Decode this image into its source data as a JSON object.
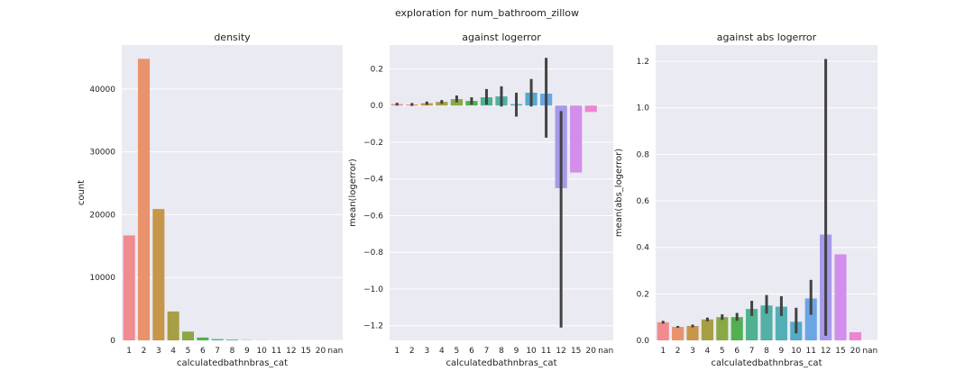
{
  "figure": {
    "title": "exploration for num_bathroom_zillow"
  },
  "chart_data": [
    {
      "type": "bar",
      "title": "density",
      "xlabel": "calculatedbathnbras_cat",
      "ylabel": "count",
      "categories": [
        "1",
        "2",
        "3",
        "4",
        "5",
        "6",
        "7",
        "8",
        "9",
        "10",
        "11",
        "12",
        "15",
        "20",
        "nan"
      ],
      "values": [
        16700,
        44800,
        20900,
        4600,
        1400,
        450,
        200,
        130,
        40,
        20,
        10,
        4,
        2,
        1,
        0
      ],
      "ylim": [
        0,
        47000
      ],
      "yticks": [
        0,
        10000,
        20000,
        30000,
        40000
      ],
      "grid": true
    },
    {
      "type": "bar",
      "title": "against logerror",
      "xlabel": "calculatedbathnbras_cat",
      "ylabel": "mean(logerror)",
      "categories": [
        "1",
        "2",
        "3",
        "4",
        "5",
        "6",
        "7",
        "8",
        "9",
        "10",
        "11",
        "12",
        "15",
        "20",
        "nan"
      ],
      "values": [
        0.008,
        0.006,
        0.013,
        0.02,
        0.035,
        0.025,
        0.045,
        0.05,
        0.008,
        0.07,
        0.065,
        -0.45,
        -0.365,
        -0.035,
        0
      ],
      "ci_low": [
        0.0,
        -0.002,
        0.004,
        0.01,
        0.018,
        0.005,
        0.005,
        -0.005,
        -0.06,
        -0.005,
        -0.175,
        -1.21,
        null,
        null,
        null
      ],
      "ci_high": [
        0.015,
        0.014,
        0.022,
        0.03,
        0.055,
        0.045,
        0.09,
        0.105,
        0.07,
        0.145,
        0.26,
        -0.03,
        null,
        null,
        null
      ],
      "ylim": [
        -1.28,
        0.33
      ],
      "yticks": [
        -1.2,
        -1.0,
        -0.8,
        -0.6,
        -0.4,
        -0.2,
        0.0,
        0.2
      ],
      "ytick_labels": [
        "−1.2",
        "−1.0",
        "−0.8",
        "−0.6",
        "−0.4",
        "−0.2",
        "0.0",
        "0.2"
      ],
      "grid": true
    },
    {
      "type": "bar",
      "title": "against abs logerror",
      "xlabel": "calculatedbathnbras_cat",
      "ylabel": "mean(abs_logerror)",
      "categories": [
        "1",
        "2",
        "3",
        "4",
        "5",
        "6",
        "7",
        "8",
        "9",
        "10",
        "11",
        "12",
        "15",
        "20",
        "nan"
      ],
      "values": [
        0.078,
        0.058,
        0.062,
        0.09,
        0.1,
        0.1,
        0.135,
        0.15,
        0.145,
        0.08,
        0.18,
        0.455,
        0.37,
        0.035,
        0
      ],
      "ci_low": [
        0.072,
        0.054,
        0.056,
        0.082,
        0.088,
        0.084,
        0.105,
        0.115,
        0.105,
        0.03,
        0.11,
        0.02,
        null,
        null,
        null
      ],
      "ci_high": [
        0.084,
        0.062,
        0.068,
        0.098,
        0.112,
        0.118,
        0.17,
        0.195,
        0.19,
        0.14,
        0.26,
        1.21,
        null,
        null,
        null
      ],
      "ylim": [
        0,
        1.27
      ],
      "yticks": [
        0,
        0.2,
        0.4,
        0.6,
        0.8,
        1.0,
        1.2
      ],
      "ytick_labels": [
        "0.0",
        "0.2",
        "0.4",
        "0.6",
        "0.8",
        "1.0",
        "1.2"
      ],
      "grid": true
    }
  ],
  "colors": {
    "background": "#eaeaf2",
    "grid": "#ffffff",
    "errorbar": "#424242",
    "bars": [
      "#f08b90",
      "#e9926c",
      "#c79649",
      "#a69f46",
      "#8aa846",
      "#52b051",
      "#4fb18f",
      "#52b0a5",
      "#53afb5",
      "#53abc9",
      "#6aa6e4",
      "#a59ae9",
      "#d38dea",
      "#ec86d2",
      "#f383b4"
    ]
  }
}
